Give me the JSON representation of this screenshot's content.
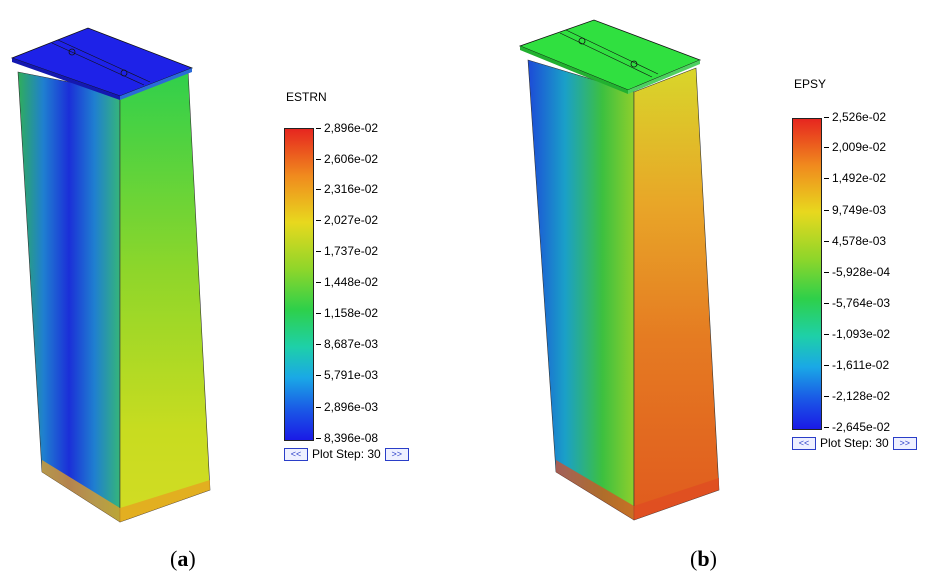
{
  "panels": [
    {
      "id": "a",
      "legend_title": "ESTRN",
      "legend_values": [
        "2,896e-02",
        "2,606e-02",
        "2,316e-02",
        "2,027e-02",
        "1,737e-02",
        "1,448e-02",
        "1,158e-02",
        "8,687e-03",
        "5,791e-03",
        "2,896e-03",
        "8,396e-08"
      ],
      "plot_step_label": "Plot Step: 30",
      "prev_button": "<<",
      "next_button": ">>",
      "caption_open": "(",
      "caption_letter": "a",
      "caption_close": ")"
    },
    {
      "id": "b",
      "legend_title": "EPSY",
      "legend_values": [
        "2,526e-02",
        "2,009e-02",
        "1,492e-02",
        "9,749e-03",
        "4,578e-03",
        "-5,928e-04",
        "-5,764e-03",
        "-1,093e-02",
        "-1,611e-02",
        "-2,128e-02",
        "-2,645e-02"
      ],
      "plot_step_label": "Plot Step: 30",
      "prev_button": "<<",
      "next_button": ">>",
      "caption_open": "(",
      "caption_letter": "b",
      "caption_close": ")"
    }
  ],
  "colors": {
    "scale_top": "#e6261f",
    "scale_bottom": "#1a1ae6"
  }
}
